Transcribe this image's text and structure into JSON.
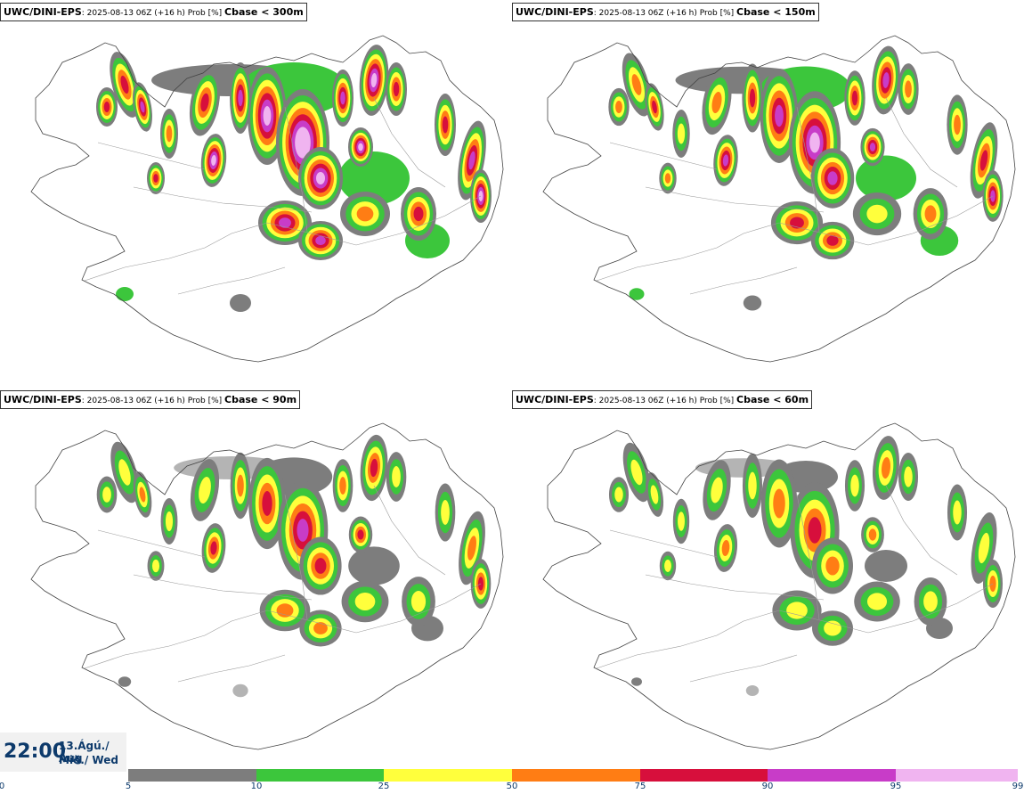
{
  "panels": [
    {
      "model": "UWC/DINI-EPS",
      "meta": ": 2025-08-13 06Z (+16 h) Prob [%] ",
      "threshold": "Cbase < 300m"
    },
    {
      "model": "UWC/DINI-EPS",
      "meta": ": 2025-08-13 06Z (+16 h) Prob [%] ",
      "threshold": "Cbase < 150m"
    },
    {
      "model": "UWC/DINI-EPS",
      "meta": ": 2025-08-13 06Z (+16 h) Prob [%] ",
      "threshold": "Cbase < 90m"
    },
    {
      "model": "UWC/DINI-EPS",
      "meta": ": 2025-08-13 06Z (+16 h) Prob [%] ",
      "threshold": "Cbase < 60m"
    }
  ],
  "time": {
    "clock": "22:00",
    "date_line1": "13.Ágú./ Aug",
    "date_line2": "Mið./ Wed"
  },
  "legend": {
    "ticks": [
      "0",
      "5",
      "10",
      "25",
      "50",
      "75",
      "90",
      "95",
      "99"
    ],
    "colors": [
      "#b4b4b4",
      "#7d7d7d",
      "#3cc63c",
      "#ffff3c",
      "#ff7d14",
      "#d70f3c",
      "#c83cc8",
      "#f0b4f0"
    ]
  },
  "colors": {
    "land_outline": "#444444",
    "road": "#9a9a9a",
    "glacier": "#cfcfcf"
  }
}
